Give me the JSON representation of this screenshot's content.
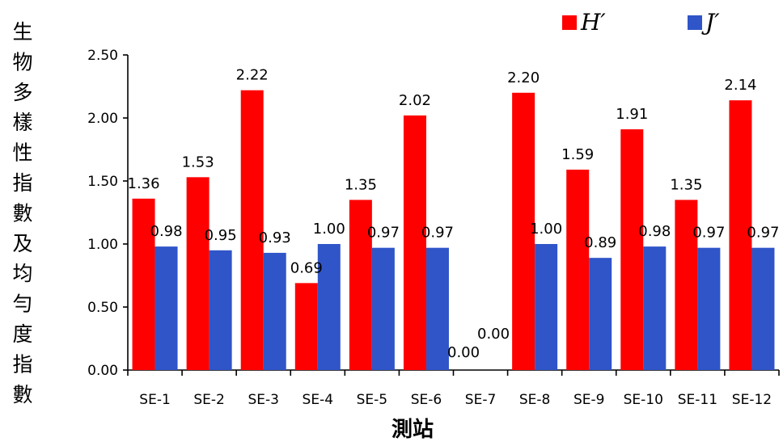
{
  "chart_data": {
    "type": "bar",
    "xlabel": "測站",
    "ylabel": "生物多樣性指數及均勻度指數",
    "categories": [
      "SE-1",
      "SE-2",
      "SE-3",
      "SE-4",
      "SE-5",
      "SE-6",
      "SE-7",
      "SE-8",
      "SE-9",
      "SE-10",
      "SE-11",
      "SE-12"
    ],
    "series": [
      {
        "name": "H′",
        "color": "#ff0000",
        "values": [
          1.36,
          1.53,
          2.22,
          0.69,
          1.35,
          2.02,
          0.0,
          2.2,
          1.59,
          1.91,
          1.35,
          2.14
        ],
        "labels": [
          "1.36",
          "1.53",
          "2.22",
          "0.69",
          "1.35",
          "2.02",
          "0.00",
          "2.20",
          "1.59",
          "1.91",
          "1.35",
          "2.14"
        ]
      },
      {
        "name": "J′",
        "color": "#2f55c8",
        "values": [
          0.98,
          0.95,
          0.93,
          1.0,
          0.97,
          0.97,
          0.0,
          1.0,
          0.89,
          0.98,
          0.97,
          0.97
        ],
        "labels": [
          "0.98",
          "0.95",
          "0.93",
          "1.00",
          "0.97",
          "0.97",
          "0.00",
          "1.00",
          "0.89",
          "0.98",
          "0.97",
          "0.97"
        ]
      }
    ],
    "ylim": [
      0,
      2.5
    ],
    "yticks": [
      "0.00",
      "0.50",
      "1.00",
      "1.50",
      "2.00",
      "2.50"
    ],
    "grid": false,
    "legend": "top-right"
  }
}
